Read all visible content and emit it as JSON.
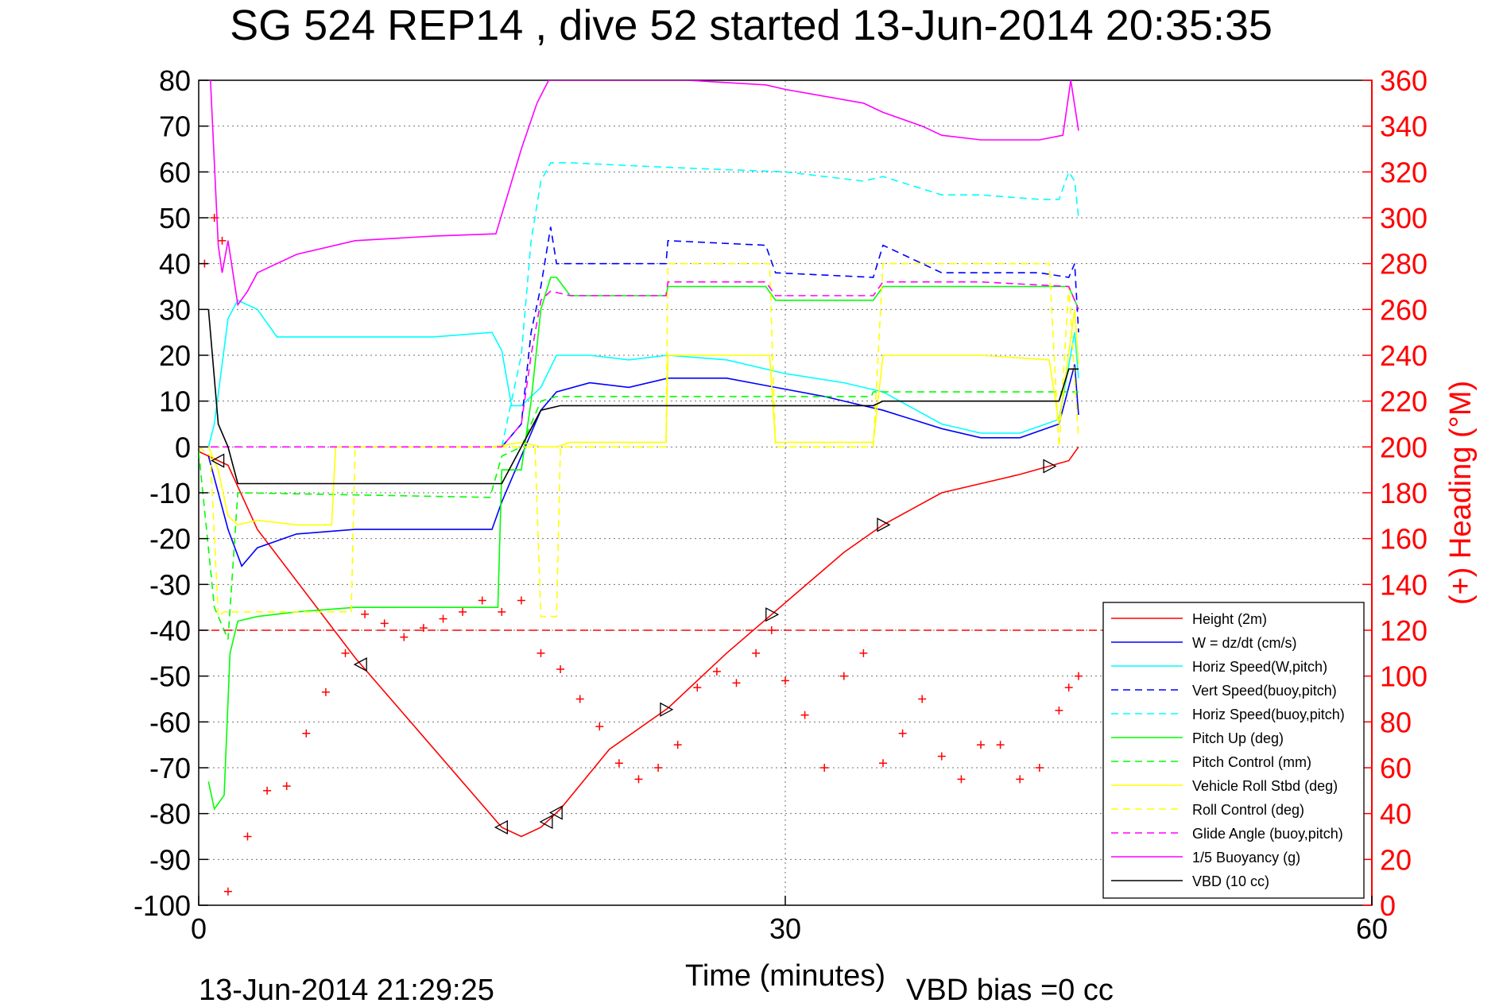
{
  "chart_data": {
    "type": "line",
    "title": "SG 524   REP14  , dive 52 started 13-Jun-2014 20:35:35",
    "xlabel": "Time (minutes)",
    "ylabel_right": "(+) Heading (°M)",
    "footer_left": "13-Jun-2014 21:29:25",
    "footer_right": "VBD bias =0 cc",
    "xlim": [
      0,
      60
    ],
    "ylim_left": [
      -100,
      80
    ],
    "ylim_right": [
      0,
      360
    ],
    "x_ticks": [
      "0",
      "30",
      "60"
    ],
    "y_ticks_left": [
      "80",
      "70",
      "60",
      "50",
      "40",
      "30",
      "20",
      "10",
      "0",
      "-10",
      "-20",
      "-30",
      "-40",
      "-50",
      "-60",
      "-70",
      "-80",
      "-90",
      "-100"
    ],
    "y_ticks_right": [
      "360",
      "340",
      "320",
      "300",
      "280",
      "260",
      "240",
      "220",
      "200",
      "180",
      "160",
      "140",
      "120",
      "100",
      "80",
      "60",
      "40",
      "20",
      "0"
    ],
    "grid": true,
    "legend_position": "bottom-right",
    "colors": {
      "red": "#ff0000",
      "blue": "#0000ff",
      "cyan": "#00ffff",
      "green": "#00ff00",
      "yellow": "#ffff00",
      "magenta": "#ff00ff",
      "black": "#000000"
    },
    "series": [
      {
        "name": "Height (2m)",
        "color": "#ff0000",
        "style": "solid",
        "x": [
          0,
          1.5,
          3,
          8,
          15.5,
          16.5,
          17.5,
          18.5,
          21,
          24,
          27,
          30,
          33,
          35,
          38,
          42,
          44.5,
          45
        ],
        "y": [
          -1,
          -4,
          -18,
          -46,
          -83,
          -85,
          -83,
          -79,
          -66,
          -57,
          -45,
          -34,
          -23,
          -17,
          -10,
          -6,
          -3,
          0
        ]
      },
      {
        "name": "W = dz/dt (cm/s)",
        "color": "#0000ff",
        "style": "solid",
        "x": [
          0.5,
          1,
          1.5,
          2.2,
          3,
          5,
          8,
          12,
          15,
          15.5,
          16.5,
          17.5,
          18.3,
          20,
          22,
          24,
          27,
          29.5,
          32,
          35,
          38,
          40,
          42,
          44,
          44.8,
          45
        ],
        "y": [
          -2,
          -10,
          -18,
          -26,
          -22,
          -19,
          -18,
          -18,
          -18,
          -12,
          -2,
          8,
          12,
          14,
          13,
          15,
          15,
          13,
          11,
          8,
          4,
          2,
          2,
          5,
          18,
          7
        ]
      },
      {
        "name": "Horiz Speed(W,pitch)",
        "color": "#00ffff",
        "style": "solid",
        "x": [
          0.5,
          0.8,
          1.5,
          2,
          3,
          4,
          6,
          8,
          12,
          15,
          15.5,
          16,
          16.5,
          17.5,
          18.3,
          20,
          22,
          24,
          27,
          30,
          33,
          35,
          38,
          40,
          42,
          44,
          44.8,
          45
        ],
        "y": [
          0,
          5,
          28,
          32,
          30,
          24,
          24,
          24,
          24,
          25,
          21,
          9,
          9,
          13,
          20,
          20,
          19,
          20,
          19,
          16,
          14,
          12,
          5,
          3,
          3,
          6,
          25,
          15
        ]
      },
      {
        "name": "Vert Speed(buoy,pitch)",
        "color": "#0000ff",
        "style": "dashed",
        "x": [
          15.5,
          16.5,
          17,
          17.5,
          18,
          18.3,
          20,
          23.9,
          24,
          29,
          29.5,
          34.5,
          35,
          36,
          38,
          40,
          43,
          44.5,
          44.8,
          45
        ],
        "y": [
          0,
          5,
          25,
          35,
          48,
          40,
          40,
          40,
          45,
          44,
          38,
          37,
          44,
          42,
          38,
          38,
          38,
          37,
          40,
          25
        ]
      },
      {
        "name": "Horiz Speed(buoy,pitch)",
        "color": "#00ffff",
        "style": "dashed",
        "x": [
          15.5,
          16.5,
          17,
          17.5,
          18,
          19,
          24,
          30,
          34,
          35,
          38,
          40,
          43,
          44,
          44.5,
          44.8,
          45
        ],
        "y": [
          0,
          20,
          45,
          58,
          62,
          62,
          61,
          60,
          58,
          59,
          55,
          55,
          54,
          54,
          60,
          58,
          50
        ]
      },
      {
        "name": "Pitch Up (deg)",
        "color": "#00ff00",
        "style": "solid",
        "x": [
          0.5,
          0.8,
          1.3,
          1.6,
          2,
          3,
          5,
          8,
          12,
          15,
          15.3,
          15.5,
          16.5,
          17,
          17.5,
          18,
          18.3,
          19,
          23.9,
          24,
          29,
          29.5,
          34.5,
          35,
          40,
          44.5,
          45
        ],
        "y": [
          -73,
          -79,
          -76,
          -45,
          -38,
          -37,
          -36,
          -35,
          -35,
          -35,
          -35,
          -5,
          -5,
          10,
          30,
          37,
          37,
          33,
          33,
          35,
          35,
          32,
          32,
          35,
          35,
          35,
          30
        ]
      },
      {
        "name": "Pitch Control (mm)",
        "color": "#00ff00",
        "style": "dashed",
        "x": [
          0,
          0.8,
          1.5,
          2,
          14.9,
          15.5,
          16.5,
          17.5,
          18.3,
          23.9,
          24,
          29.5,
          34.4,
          34.5,
          44.5,
          45
        ],
        "y": [
          -1,
          -35,
          -42,
          -10,
          -11,
          -2,
          0,
          10,
          11,
          11,
          11,
          11,
          11,
          12,
          12,
          12
        ]
      },
      {
        "name": "Vehicle Roll Stbd (deg)",
        "color": "#ffff00",
        "style": "solid",
        "x": [
          0,
          0.5,
          1,
          1.5,
          2,
          3,
          5,
          6.8,
          7,
          8,
          12,
          15,
          16.5,
          17.5,
          18.3,
          19,
          23.9,
          24,
          29.2,
          29.5,
          34.5,
          35,
          40,
          43.5,
          44,
          44.8,
          45
        ],
        "y": [
          0,
          0,
          -5,
          -15,
          -17,
          -16,
          -17,
          -17,
          0,
          0,
          0,
          0,
          1,
          0,
          0,
          1,
          1,
          20,
          20,
          1,
          1,
          20,
          20,
          19,
          5,
          30,
          18
        ]
      },
      {
        "name": "Roll Control (deg)",
        "color": "#ffff00",
        "style": "dashed",
        "x": [
          0,
          0.6,
          1,
          1.3,
          2,
          7.8,
          8,
          17.2,
          17.5,
          18.3,
          18.5,
          23.9,
          24,
          29.2,
          29.5,
          34.5,
          35,
          43.5,
          44,
          44.5,
          45
        ],
        "y": [
          0,
          -2,
          -37,
          -36,
          -36,
          -36,
          0,
          0,
          -37,
          -37,
          0,
          0,
          40,
          40,
          0,
          0,
          40,
          40,
          0,
          35,
          2
        ]
      },
      {
        "name": "Glide Angle (buoy,pitch)",
        "color": "#ff00ff",
        "style": "dashed",
        "x": [
          0,
          15.5,
          16.5,
          17,
          17.5,
          18,
          19,
          23.9,
          24,
          29,
          29.5,
          34.5,
          35,
          40,
          44.5,
          45
        ],
        "y": [
          0,
          0,
          5,
          20,
          32,
          34,
          33,
          33,
          36,
          36,
          33,
          33,
          36,
          36,
          35,
          30
        ]
      },
      {
        "name": "1/5 Buoyancy (g)",
        "color": "#ff00ff",
        "style": "solid",
        "x": [
          0.6,
          1,
          1.2,
          1.5,
          2,
          2.5,
          3,
          5,
          8,
          12,
          15.2,
          15.8,
          16.5,
          17.3,
          17.9,
          25,
          29,
          30,
          34,
          35,
          37,
          38,
          40,
          43,
          44.2,
          44.6,
          45
        ],
        "y": [
          80,
          44,
          38,
          45,
          31,
          34,
          38,
          42,
          45,
          46,
          46.5,
          55,
          65,
          75,
          80,
          80,
          79,
          78,
          75,
          73,
          70,
          68,
          67,
          67,
          68,
          80,
          69
        ]
      },
      {
        "name": "VBD (10 cc)",
        "color": "#000000",
        "style": "solid",
        "x": [
          0.5,
          1,
          1.5,
          2,
          15,
          15.5,
          16.5,
          17.5,
          18.5,
          20,
          34.5,
          35,
          43.5,
          44,
          44.5,
          45
        ],
        "y": [
          30,
          5,
          0,
          -8,
          -8,
          -8,
          0,
          8,
          9,
          9,
          9,
          10,
          10,
          10,
          17,
          17
        ]
      }
    ],
    "heading_series": {
      "name": "(+) Heading (°M)",
      "color": "#ff0000",
      "marker": "+",
      "mean_heading": 120,
      "x": [
        0.3,
        0.8,
        1.2,
        1.5,
        2.5,
        3.5,
        4.5,
        5.5,
        6.5,
        7.5,
        8.5,
        9.5,
        10.5,
        11.5,
        12.5,
        13.5,
        14.5,
        15.5,
        16.5,
        17.5,
        18.5,
        19.5,
        20.5,
        21.5,
        22.5,
        23.5,
        24.5,
        25.5,
        26.5,
        27.5,
        28.5,
        29.3,
        30,
        31,
        32,
        33,
        34,
        35,
        36,
        37,
        38,
        39,
        40,
        41,
        42,
        43,
        44,
        44.5,
        45
      ],
      "y": [
        280,
        300,
        290,
        6,
        30,
        50,
        52,
        75,
        93,
        110,
        127,
        123,
        117,
        121,
        125,
        128,
        133,
        128,
        133,
        110,
        103,
        90,
        78,
        62,
        55,
        60,
        70,
        95,
        102,
        97,
        110,
        120,
        98,
        83,
        60,
        100,
        110,
        62,
        75,
        90,
        65,
        55,
        70,
        70,
        55,
        60,
        85,
        95,
        100
      ]
    }
  }
}
